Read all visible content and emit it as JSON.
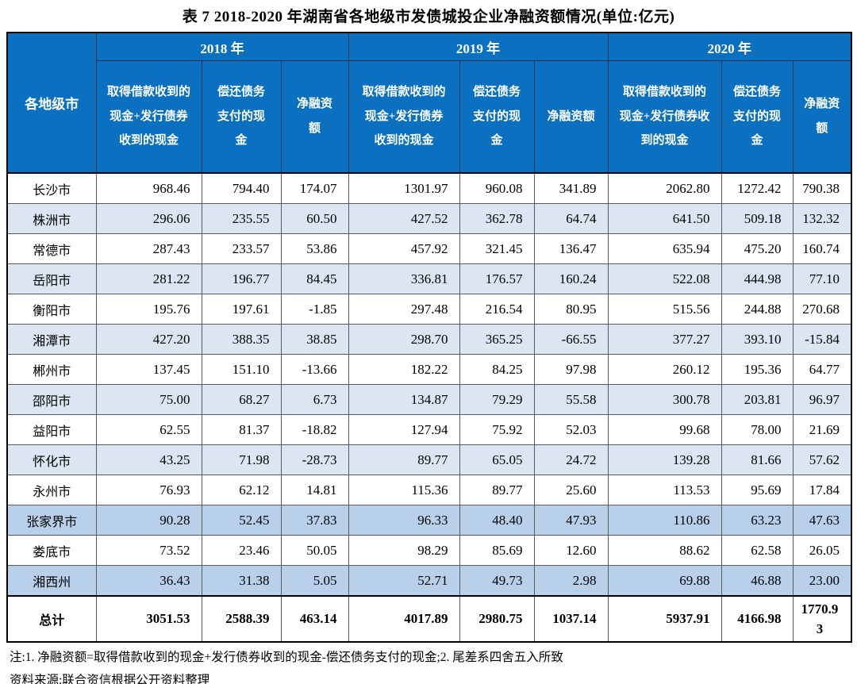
{
  "title": "表 7  2018-2020 年湖南省各地级市发债城投企业净融资额情况(单位:亿元)",
  "table": {
    "corner_header": "各地级市",
    "year_groups": [
      "2018 年",
      "2019 年",
      "2020 年"
    ],
    "sub_headers": [
      "取得借款收到的现金+发行债券收到的现金",
      "偿还债务支付的现金",
      "净融资额"
    ],
    "rows": [
      {
        "city": "长沙市",
        "shade": "white",
        "values": [
          "968.46",
          "794.40",
          "174.07",
          "1301.97",
          "960.08",
          "341.89",
          "2062.80",
          "1272.42",
          "790.38"
        ]
      },
      {
        "city": "株洲市",
        "shade": "light",
        "values": [
          "296.06",
          "235.55",
          "60.50",
          "427.52",
          "362.78",
          "64.74",
          "641.50",
          "509.18",
          "132.32"
        ]
      },
      {
        "city": "常德市",
        "shade": "white",
        "values": [
          "287.43",
          "233.57",
          "53.86",
          "457.92",
          "321.45",
          "136.47",
          "635.94",
          "475.20",
          "160.74"
        ]
      },
      {
        "city": "岳阳市",
        "shade": "light",
        "values": [
          "281.22",
          "196.77",
          "84.45",
          "336.81",
          "176.57",
          "160.24",
          "522.08",
          "444.98",
          "77.10"
        ]
      },
      {
        "city": "衡阳市",
        "shade": "white",
        "values": [
          "195.76",
          "197.61",
          "-1.85",
          "297.48",
          "216.54",
          "80.95",
          "515.56",
          "244.88",
          "270.68"
        ]
      },
      {
        "city": "湘潭市",
        "shade": "light",
        "values": [
          "427.20",
          "388.35",
          "38.85",
          "298.70",
          "365.25",
          "-66.55",
          "377.27",
          "393.10",
          "-15.84"
        ]
      },
      {
        "city": "郴州市",
        "shade": "white",
        "values": [
          "137.45",
          "151.10",
          "-13.66",
          "182.22",
          "84.25",
          "97.98",
          "260.12",
          "195.36",
          "64.77"
        ]
      },
      {
        "city": "邵阳市",
        "shade": "light",
        "values": [
          "75.00",
          "68.27",
          "6.73",
          "134.87",
          "79.29",
          "55.58",
          "300.78",
          "203.81",
          "96.97"
        ]
      },
      {
        "city": "益阳市",
        "shade": "white",
        "values": [
          "62.55",
          "81.37",
          "-18.82",
          "127.94",
          "75.92",
          "52.03",
          "99.68",
          "78.00",
          "21.69"
        ]
      },
      {
        "city": "怀化市",
        "shade": "light",
        "values": [
          "43.25",
          "71.98",
          "-28.73",
          "89.77",
          "65.05",
          "24.72",
          "139.28",
          "81.66",
          "57.62"
        ]
      },
      {
        "city": "永州市",
        "shade": "white",
        "values": [
          "76.93",
          "62.12",
          "14.81",
          "115.36",
          "89.77",
          "25.60",
          "113.53",
          "95.69",
          "17.84"
        ]
      },
      {
        "city": "张家界市",
        "shade": "medium",
        "values": [
          "90.28",
          "52.45",
          "37.83",
          "96.33",
          "48.40",
          "47.93",
          "110.86",
          "63.23",
          "47.63"
        ]
      },
      {
        "city": "娄底市",
        "shade": "white",
        "values": [
          "73.52",
          "23.46",
          "50.05",
          "98.29",
          "85.69",
          "12.60",
          "88.62",
          "62.58",
          "26.05"
        ]
      },
      {
        "city": "湘西州",
        "shade": "medium",
        "values": [
          "36.43",
          "31.38",
          "5.05",
          "52.71",
          "49.73",
          "2.98",
          "69.88",
          "46.88",
          "23.00"
        ]
      },
      {
        "city": "总计",
        "shade": "total",
        "values": [
          "3051.53",
          "2588.39",
          "463.14",
          "4017.89",
          "2980.75",
          "1037.14",
          "5937.91",
          "4166.98",
          "1770.93"
        ]
      }
    ]
  },
  "notes": {
    "note1": "注:1. 净融资额=取得借款收到的现金+发行债券收到的现金-偿还债务支付的现金;2. 尾差系四舍五入所致",
    "source": "资料来源:联合资信根据公开资料整理"
  },
  "colors": {
    "header_bg": "#0b70c0",
    "stripe_light": "#dce6f2",
    "stripe_medium": "#b8d0ea"
  }
}
